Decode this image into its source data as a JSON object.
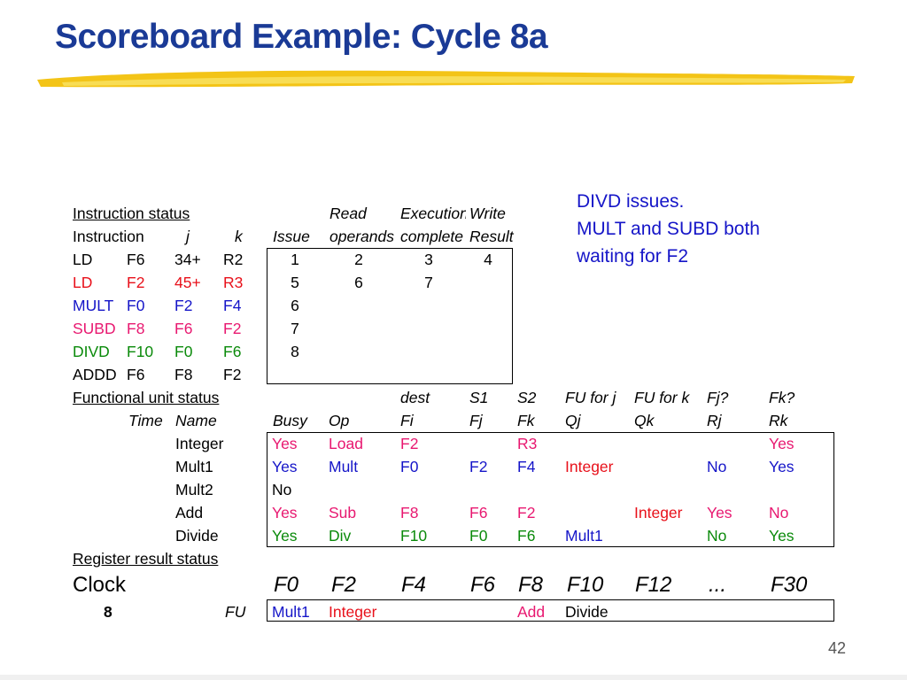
{
  "title": "Scoreboard Example: Cycle 8a",
  "note": [
    "DIVD issues.",
    "MULT and SUBD both",
    "waiting for F2"
  ],
  "instruction_status": {
    "label": "Instruction status",
    "header_top": {
      "read": "Read",
      "exec": "Execution",
      "write": "Write"
    },
    "header": {
      "instr": "Instruction",
      "j": "j",
      "k": "k",
      "issue": "Issue",
      "read": "operands",
      "exec": "complete",
      "write": "Result"
    },
    "rows": [
      {
        "op": "LD",
        "dst": "F6",
        "j": "34+",
        "k": "R2",
        "issue": "1",
        "read": "2",
        "exec": "3",
        "write": "4",
        "color": "black"
      },
      {
        "op": "LD",
        "dst": "F2",
        "j": "45+",
        "k": "R3",
        "issue": "5",
        "read": "6",
        "exec": "7",
        "write": "",
        "color": "red"
      },
      {
        "op": "MULT",
        "dst": "F0",
        "j": "F2",
        "k": "F4",
        "issue": "6",
        "read": "",
        "exec": "",
        "write": "",
        "color": "blue"
      },
      {
        "op": "SUBD",
        "dst": "F8",
        "j": "F6",
        "k": "F2",
        "issue": "7",
        "read": "",
        "exec": "",
        "write": "",
        "color": "mag"
      },
      {
        "op": "DIVD",
        "dst": "F10",
        "j": "F0",
        "k": "F6",
        "issue": "8",
        "read": "",
        "exec": "",
        "write": "",
        "color": "green"
      },
      {
        "op": "ADDD",
        "dst": "F6",
        "j": "F8",
        "k": "F2",
        "issue": "",
        "read": "",
        "exec": "",
        "write": "",
        "color": "black"
      }
    ]
  },
  "functional_unit_status": {
    "label": "Functional unit status",
    "header_top": {
      "dest": "dest",
      "s1": "S1",
      "s2": "S2",
      "fuj": "FU for j",
      "fuk": "FU for k",
      "fjq": "Fj?",
      "fkq": "Fk?"
    },
    "header": {
      "time": "Time",
      "name": "Name",
      "busy": "Busy",
      "op": "Op",
      "fi": "Fi",
      "fj": "Fj",
      "fk": "Fk",
      "qj": "Qj",
      "qk": "Qk",
      "rj": "Rj",
      "rk": "Rk"
    },
    "rows": [
      {
        "name": "Integer",
        "busy": "Yes",
        "op": "Load",
        "fi": "F2",
        "fj": "",
        "fk": "R3",
        "qj": "",
        "qk": "",
        "rj": "",
        "rk": "Yes",
        "color": "mag"
      },
      {
        "name": "Mult1",
        "busy": "Yes",
        "op": "Mult",
        "fi": "F0",
        "fj": "F2",
        "fk": "F4",
        "qj": "Integer",
        "qk": "",
        "rj": "No",
        "rk": "Yes",
        "color": "blue"
      },
      {
        "name": "Mult2",
        "busy": "No",
        "op": "",
        "fi": "",
        "fj": "",
        "fk": "",
        "qj": "",
        "qk": "",
        "rj": "",
        "rk": "",
        "color": "black"
      },
      {
        "name": "Add",
        "busy": "Yes",
        "op": "Sub",
        "fi": "F8",
        "fj": "F6",
        "fk": "F2",
        "qj": "",
        "qk": "Integer",
        "rj": "Yes",
        "rk": "No",
        "color": "mag"
      },
      {
        "name": "Divide",
        "busy": "Yes",
        "op": "Div",
        "fi": "F10",
        "fj": "F0",
        "fk": "F6",
        "qj": "Mult1",
        "qk": "",
        "rj": "No",
        "rk": "Yes",
        "color": "green"
      }
    ]
  },
  "register_result_status": {
    "label": "Register result status",
    "clock_label": "Clock",
    "clock_value": "8",
    "fu_label": "FU",
    "registers": [
      "F0",
      "F2",
      "F4",
      "F6",
      "F8",
      "F10",
      "F12",
      "...",
      "F30"
    ],
    "fu_values": [
      "Mult1",
      "Integer",
      "",
      "",
      "Add",
      "Divide",
      "",
      "",
      ""
    ]
  },
  "colors": {
    "title": "#1a3a96",
    "red": "#e8101a",
    "blue": "#1515c8",
    "magenta": "#e81870",
    "green": "#0a8a0a"
  },
  "page_number": "42"
}
